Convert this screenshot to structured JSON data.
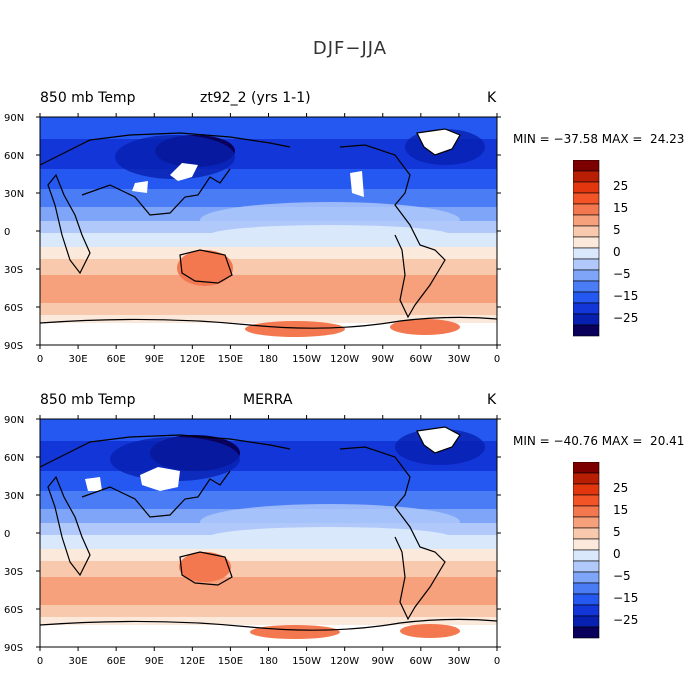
{
  "title": "DJF−JJA",
  "colors": {
    "palette": [
      "#08005a",
      "#0720b0",
      "#1236d8",
      "#2458f0",
      "#4a7cf5",
      "#7ea5f7",
      "#b0c9fa",
      "#d9e8fb",
      "#fbe9dc",
      "#f8c9ad",
      "#f6a07c",
      "#f4784f",
      "#f25428",
      "#e2360e",
      "#b81e04",
      "#7c0000"
    ],
    "land_missing": "#ffffff",
    "coast": "#000000"
  },
  "colorbar": {
    "labels": [
      "25",
      "15",
      "5",
      "0",
      "−5",
      "−15",
      "−25"
    ]
  },
  "panels": [
    {
      "variable": "850 mb Temp",
      "source": "zt92_2 (yrs 1-1)",
      "units": "K",
      "stats": "MIN = −37.58 MAX =  24.23",
      "min": -37.58,
      "max": 24.23
    },
    {
      "variable": "850 mb Temp",
      "source": "MERRA",
      "units": "K",
      "stats": "MIN = −40.76 MAX =  20.41",
      "min": -40.76,
      "max": 20.41
    }
  ],
  "lat_labels": [
    "90N",
    "60N",
    "30N",
    "0",
    "30S",
    "60S",
    "90S"
  ],
  "lon_labels": [
    "0",
    "30E",
    "60E",
    "90E",
    "120E",
    "150E",
    "180",
    "150W",
    "120W",
    "90W",
    "60W",
    "30W",
    "0"
  ]
}
